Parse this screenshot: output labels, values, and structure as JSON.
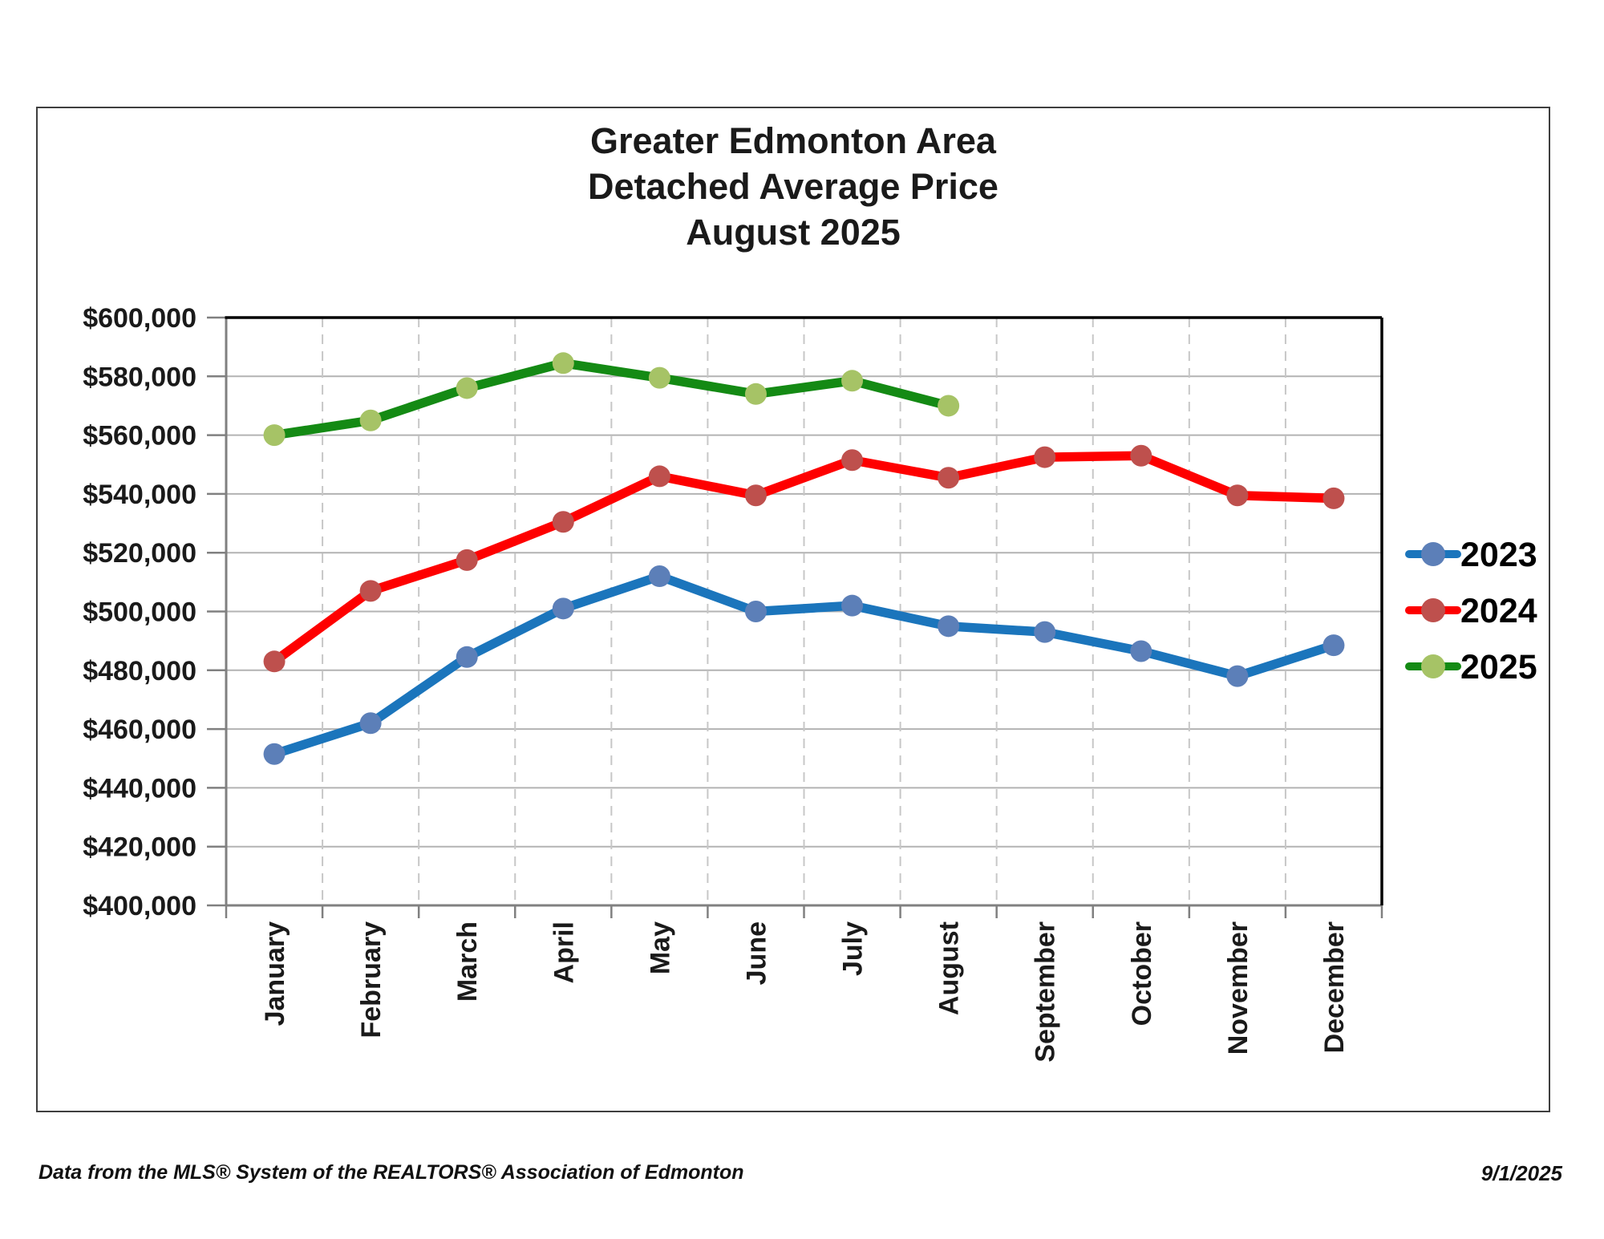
{
  "title": {
    "lines": [
      "Greater Edmonton Area",
      "Detached Average Price",
      "August 2025"
    ]
  },
  "footer": {
    "source": "Data from the MLS® System of the REALTORS® Association of Edmonton",
    "date": "9/1/2025"
  },
  "chart_data": {
    "type": "line",
    "title": "Greater Edmonton Area Detached Average Price August 2025",
    "categories": [
      "January",
      "February",
      "March",
      "April",
      "May",
      "June",
      "July",
      "August",
      "September",
      "October",
      "November",
      "December"
    ],
    "series": [
      {
        "name": "2023",
        "line_color": "#1B75BC",
        "marker_color": "#5C7FB8",
        "values": [
          451500,
          462000,
          484500,
          501000,
          512000,
          500000,
          502000,
          495000,
          493000,
          486500,
          478000,
          488500
        ]
      },
      {
        "name": "2024",
        "line_color": "#FE0000",
        "marker_color": "#BE504D",
        "values": [
          483000,
          507000,
          517500,
          530500,
          546000,
          539500,
          551500,
          545500,
          552500,
          553000,
          539500,
          538500
        ]
      },
      {
        "name": "2025",
        "line_color": "#148A14",
        "marker_color": "#A6C366",
        "values": [
          560000,
          565000,
          576000,
          584500,
          579500,
          574000,
          578500,
          570000
        ]
      }
    ],
    "ylim": [
      400000,
      600000
    ],
    "ytick_step": 20000,
    "ytick_labels": [
      "$400,000",
      "$420,000",
      "$440,000",
      "$460,000",
      "$480,000",
      "$500,000",
      "$520,000",
      "$540,000",
      "$560,000",
      "$580,000",
      "$600,000"
    ],
    "grid": {
      "horizontal": "solid",
      "vertical": "dashed-month-boundaries"
    },
    "legend_position": "right",
    "legend_entries": [
      "2023",
      "2024",
      "2025"
    ]
  }
}
